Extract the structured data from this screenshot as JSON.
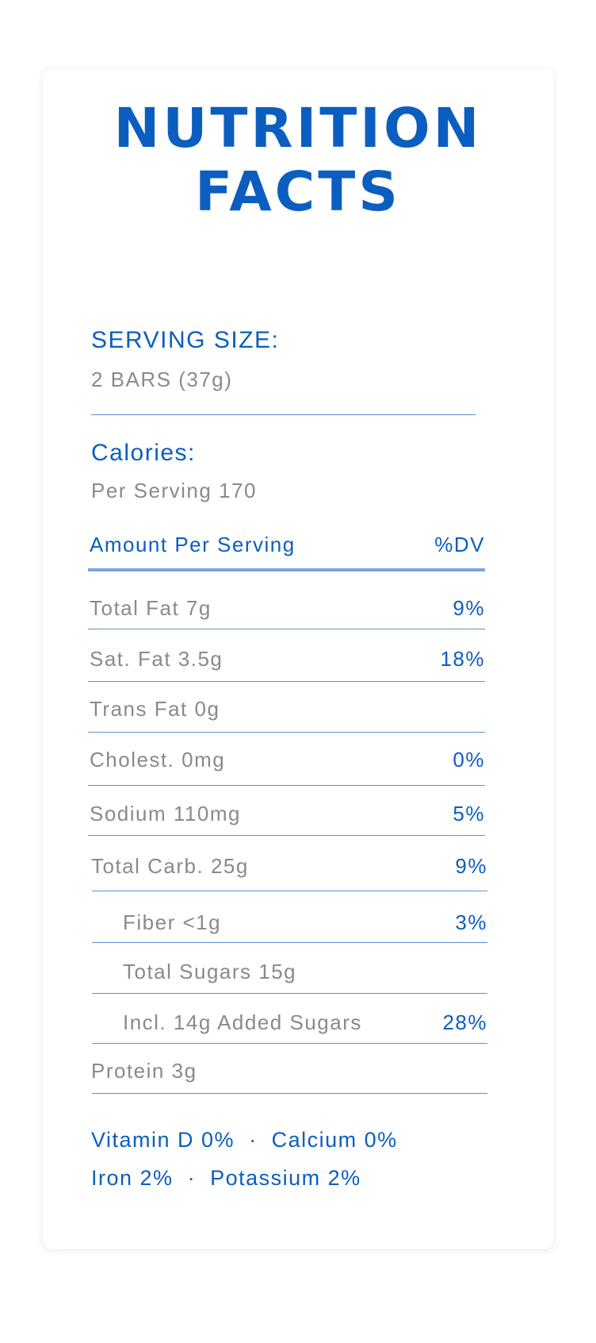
{
  "title": {
    "line1": "NUTRITION",
    "line2": "FACTS"
  },
  "serving": {
    "label": "SERVING SIZE:",
    "value": "2 BARS (37g)"
  },
  "calories": {
    "label": "Calories:",
    "value": "Per Serving 170"
  },
  "header": {
    "amount": "Amount Per Serving",
    "dv": "%DV"
  },
  "rows": [
    {
      "label": "Total Fat 7g",
      "dv": "9%"
    },
    {
      "label": "Sat. Fat 3.5g",
      "dv": "18%"
    },
    {
      "label": "Trans Fat 0g",
      "dv": ""
    },
    {
      "label": "Cholest. 0mg",
      "dv": "0%"
    },
    {
      "label": "Sodium 110mg",
      "dv": "5%"
    },
    {
      "label": "Total Carb. 25g",
      "dv": "9%"
    },
    {
      "label": "Fiber <1g",
      "dv": "3%"
    },
    {
      "label": "Total Sugars 15g",
      "dv": ""
    },
    {
      "label": "Incl. 14g Added Sugars",
      "dv": "28%"
    },
    {
      "label": "Protein 3g",
      "dv": ""
    }
  ],
  "vitamins": {
    "line1": [
      "Vitamin D 0%",
      "Calcium 0%"
    ],
    "line2": [
      "Iron 2%",
      "Potassium 2%"
    ],
    "separator": "·"
  }
}
